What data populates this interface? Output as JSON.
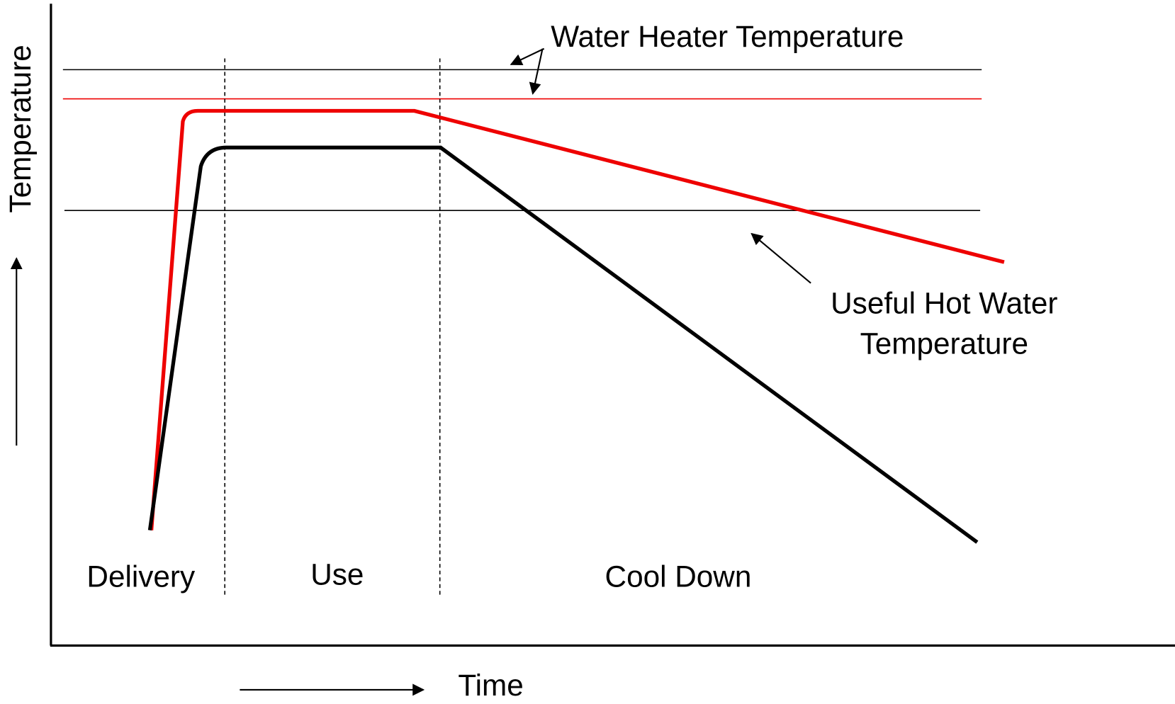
{
  "axes": {
    "y_label": "Temperature",
    "x_label": "Time"
  },
  "phases": [
    "Delivery",
    "Use",
    "Cool Down"
  ],
  "annotations": {
    "water_heater": "Water Heater Temperature",
    "useful_hot_water": [
      "Useful Hot Water",
      "Temperature"
    ]
  }
}
